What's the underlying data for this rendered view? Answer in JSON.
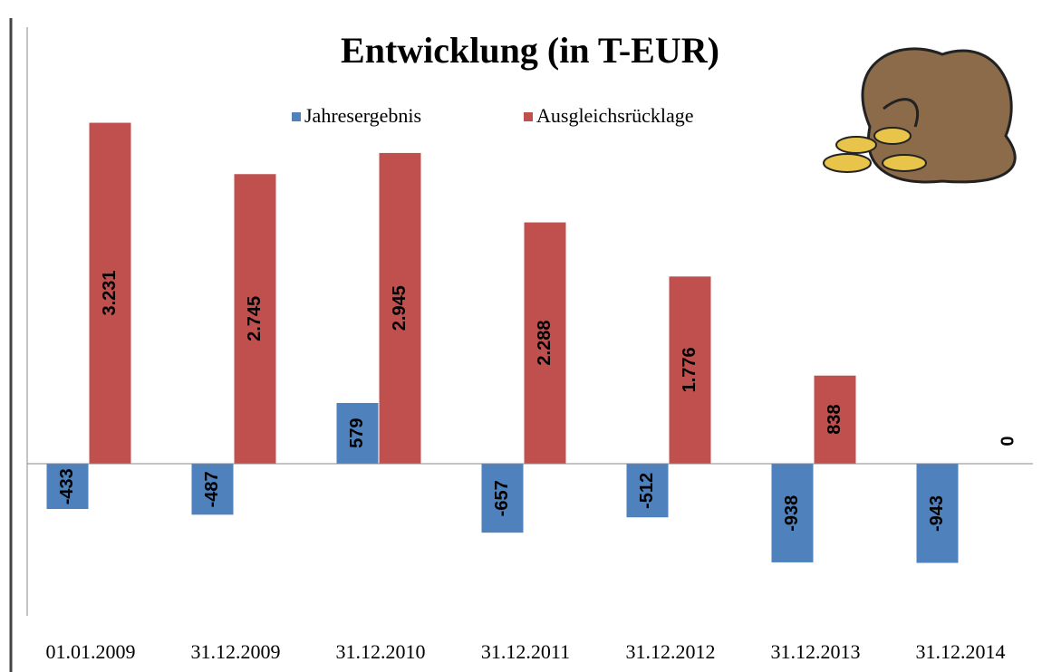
{
  "chart_data": {
    "type": "bar",
    "title": "Entwicklung (in T-EUR)",
    "categories": [
      "01.01.2009",
      "31.12.2009",
      "31.12.2010",
      "31.12.2011",
      "31.12.2012",
      "31.12.2013",
      "31.12.2014"
    ],
    "series": [
      {
        "name": "Jahresergebnis",
        "color": "#4f81bd",
        "values": [
          -433,
          -487,
          579,
          -657,
          -512,
          -938,
          -943
        ]
      },
      {
        "name": "Ausgleichsrücklage",
        "color": "#c0504d",
        "values": [
          3231,
          2745,
          2945,
          2288,
          1776,
          838,
          0
        ],
        "value_labels": [
          "3.231",
          "2.745",
          "2.945",
          "2.288",
          "1.776",
          "838",
          "0"
        ]
      }
    ],
    "ylim": [
      -1500,
      4200
    ],
    "legend": "top"
  }
}
